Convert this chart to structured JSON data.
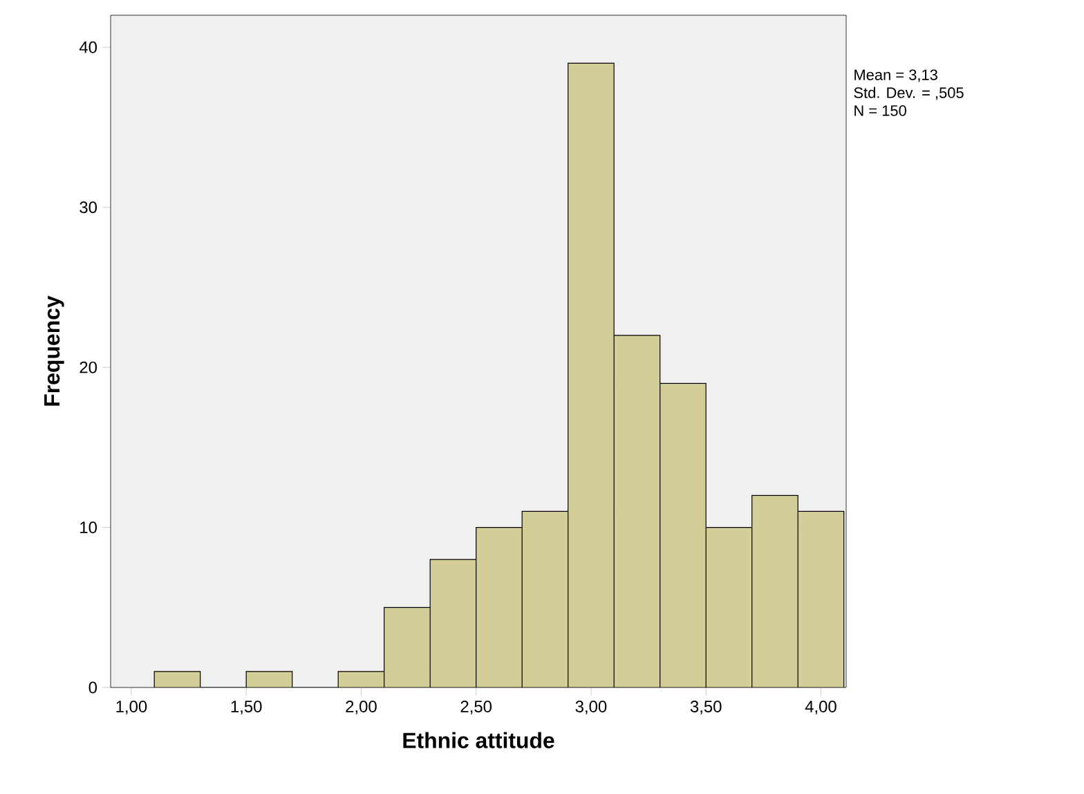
{
  "chart_data": {
    "type": "histogram",
    "xlabel": "Ethnic attitude",
    "ylabel": "Frequency",
    "bins": [
      1.1,
      1.3,
      1.5,
      1.7,
      1.9,
      2.1,
      2.3,
      2.5,
      2.7,
      2.9,
      3.1,
      3.3,
      3.5,
      3.7,
      3.9,
      4.1
    ],
    "values": [
      1,
      0,
      1,
      0,
      1,
      5,
      8,
      10,
      11,
      39,
      22,
      19,
      10,
      12,
      11
    ],
    "color": "#d3ce97",
    "xlim": [
      0.91,
      4.11
    ],
    "ylim": [
      0,
      42
    ],
    "xticks": [
      {
        "value": 1,
        "label": "1,00"
      },
      {
        "value": 1.5,
        "label": "1,50"
      },
      {
        "value": 2,
        "label": "2,00"
      },
      {
        "value": 2.5,
        "label": "2,50"
      },
      {
        "value": 3,
        "label": "3,00"
      },
      {
        "value": 3.5,
        "label": "3,50"
      },
      {
        "value": 4,
        "label": "4,00"
      }
    ],
    "yticks": [
      0,
      10,
      20,
      30,
      40
    ],
    "annotations": [
      "Mean = 3,13",
      "Std. Dev. = ,505",
      "N = 150"
    ]
  }
}
